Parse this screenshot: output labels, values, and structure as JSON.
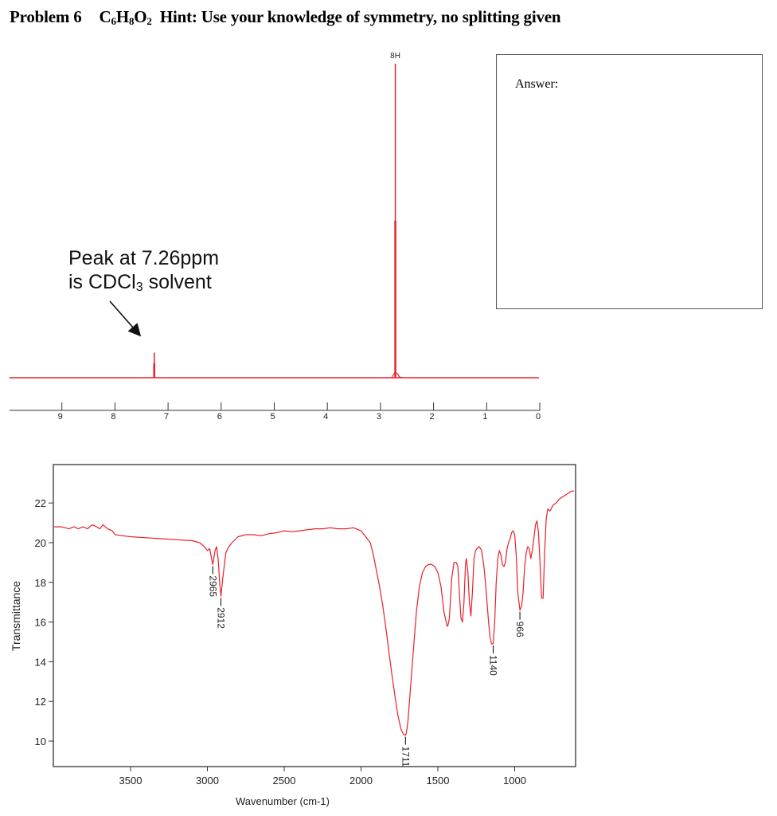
{
  "header": {
    "problem": "Problem 6",
    "formula_parts": [
      {
        "text": "C",
        "sub": "6"
      },
      {
        "text": "H",
        "sub": "8"
      },
      {
        "text": "O",
        "sub": "2"
      }
    ],
    "hint": "Hint: Use your knowledge of symmetry, no splitting given"
  },
  "answer_box": {
    "label": "Answer:",
    "value": ""
  },
  "annotation": {
    "line1": "Peak at 7.26ppm",
    "line2_prefix": "is CDCl",
    "line2_sub": "3",
    "line2_suffix": " solvent"
  },
  "colors": {
    "spectrum": "#e8202a",
    "axis": "#333333",
    "text": "#222222"
  },
  "chart_data": [
    {
      "type": "line",
      "title": "1H NMR spectrum",
      "xlabel": "",
      "ylabel": "",
      "x_reversed": true,
      "xlim": [
        10,
        0
      ],
      "x_ticks": [
        9,
        8,
        7,
        6,
        5,
        4,
        3,
        2,
        1,
        0
      ],
      "grid": false,
      "peaks": [
        {
          "ppm": 7.26,
          "relative_height": 0.08,
          "label": "",
          "note": "CDCl3 solvent"
        },
        {
          "ppm": 2.72,
          "relative_height": 1.0,
          "label": "8H"
        }
      ]
    },
    {
      "type": "line",
      "title": "IR spectrum",
      "xlabel": "Wavenumber (cm-1)",
      "ylabel": "Transmittance",
      "x_reversed": true,
      "xlim": [
        4000,
        600
      ],
      "ylim": [
        8.7,
        23.9
      ],
      "x_ticks": [
        3500,
        3000,
        2500,
        2000,
        1500,
        1000
      ],
      "y_ticks": [
        10,
        12,
        14,
        16,
        18,
        20,
        22
      ],
      "grid": false,
      "peak_labels": [
        {
          "wavenumber": 2965,
          "transmittance": 18.9,
          "label": "2965"
        },
        {
          "wavenumber": 2912,
          "transmittance": 17.3,
          "label": "2912"
        },
        {
          "wavenumber": 1711,
          "transmittance": 10.3,
          "label": "1711"
        },
        {
          "wavenumber": 1140,
          "transmittance": 14.9,
          "label": "1140"
        },
        {
          "wavenumber": 966,
          "transmittance": 16.6,
          "label": "966"
        }
      ],
      "x": [
        4000,
        3950,
        3900,
        3870,
        3840,
        3810,
        3780,
        3750,
        3720,
        3700,
        3680,
        3650,
        3620,
        3600,
        3550,
        3500,
        3400,
        3300,
        3200,
        3100,
        3050,
        3020,
        3000,
        2985,
        2975,
        2965,
        2950,
        2940,
        2930,
        2920,
        2912,
        2900,
        2880,
        2860,
        2840,
        2800,
        2750,
        2700,
        2650,
        2600,
        2550,
        2500,
        2450,
        2400,
        2350,
        2300,
        2250,
        2200,
        2150,
        2100,
        2050,
        2000,
        1980,
        1960,
        1940,
        1920,
        1900,
        1880,
        1860,
        1840,
        1820,
        1800,
        1780,
        1760,
        1740,
        1725,
        1715,
        1711,
        1705,
        1695,
        1680,
        1660,
        1640,
        1620,
        1600,
        1580,
        1560,
        1540,
        1520,
        1500,
        1480,
        1460,
        1440,
        1435,
        1425,
        1410,
        1395,
        1380,
        1370,
        1360,
        1350,
        1340,
        1330,
        1320,
        1315,
        1305,
        1295,
        1285,
        1275,
        1265,
        1255,
        1245,
        1230,
        1215,
        1200,
        1185,
        1170,
        1160,
        1150,
        1140,
        1130,
        1120,
        1110,
        1100,
        1090,
        1080,
        1070,
        1060,
        1050,
        1040,
        1030,
        1020,
        1010,
        1000,
        990,
        980,
        966,
        955,
        945,
        935,
        925,
        915,
        905,
        895,
        885,
        875,
        865,
        855,
        845,
        835,
        825,
        815,
        805,
        795,
        785,
        770,
        750,
        730,
        710,
        690,
        670,
        650,
        630,
        610
      ],
      "y": [
        20.8,
        20.8,
        20.7,
        20.8,
        20.7,
        20.8,
        20.7,
        20.9,
        20.8,
        20.7,
        20.9,
        20.7,
        20.6,
        20.4,
        20.35,
        20.3,
        20.25,
        20.2,
        20.15,
        20.1,
        20.0,
        19.8,
        19.6,
        19.7,
        19.3,
        18.9,
        19.6,
        19.8,
        19.2,
        18.0,
        17.3,
        18.2,
        19.5,
        19.8,
        20.0,
        20.3,
        20.4,
        20.4,
        20.35,
        20.45,
        20.5,
        20.6,
        20.55,
        20.6,
        20.65,
        20.7,
        20.7,
        20.75,
        20.7,
        20.7,
        20.75,
        20.6,
        20.4,
        20.2,
        20.0,
        19.4,
        18.6,
        17.8,
        16.9,
        15.8,
        14.6,
        13.4,
        12.3,
        11.3,
        10.6,
        10.35,
        10.3,
        10.3,
        10.4,
        11.0,
        12.5,
        14.5,
        16.5,
        17.8,
        18.5,
        18.8,
        18.9,
        18.9,
        18.8,
        18.5,
        17.8,
        16.5,
        15.8,
        15.8,
        16.2,
        18.2,
        19.0,
        19.0,
        18.8,
        17.5,
        16.2,
        16.0,
        17.0,
        18.9,
        19.2,
        18.6,
        17.0,
        16.3,
        17.5,
        19.2,
        19.6,
        19.7,
        19.8,
        19.6,
        18.8,
        17.5,
        16.0,
        15.2,
        14.9,
        14.9,
        16.0,
        18.0,
        19.2,
        19.6,
        19.4,
        18.9,
        18.8,
        19.0,
        19.7,
        20.0,
        20.2,
        20.5,
        20.6,
        20.4,
        19.4,
        17.5,
        16.6,
        16.8,
        17.5,
        18.8,
        19.5,
        19.8,
        19.7,
        19.2,
        19.6,
        20.2,
        20.9,
        21.1,
        20.5,
        19.0,
        17.2,
        17.2,
        19.5,
        21.2,
        21.7,
        21.6,
        21.9,
        22.0,
        22.2,
        22.3,
        22.4,
        22.5,
        22.6,
        22.6
      ]
    }
  ]
}
